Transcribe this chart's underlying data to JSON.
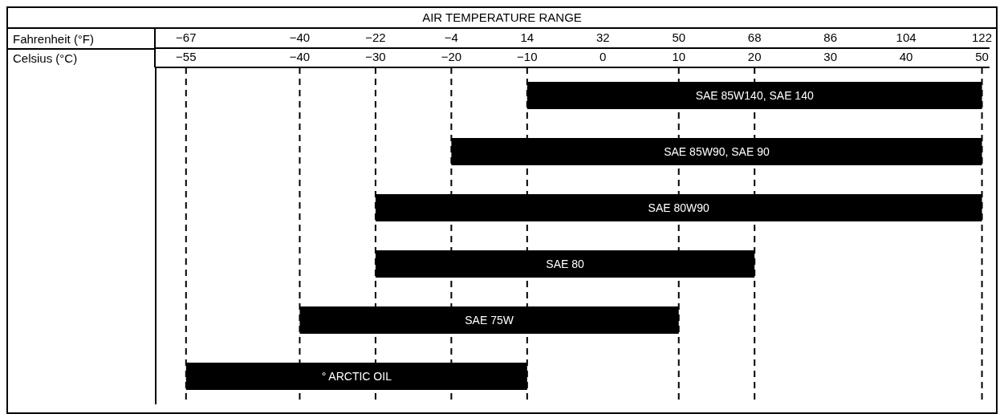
{
  "chart_data": {
    "type": "bar",
    "orientation": "horizontal",
    "title": "AIR TEMPERATURE RANGE",
    "annotations": [
      "Celsius (°C)"
    ],
    "x2label": "Fahrenheit (°F)",
    "categories": [
      "SAE 85W140, SAE 140",
      "SAE 85W90, SAE 90",
      "SAE 80W90",
      "SAE 80",
      "SAE 75W",
      "° ARCTIC OIL"
    ],
    "values": [
      60,
      70,
      80,
      50,
      50,
      45
    ],
    "base": [
      -10,
      -20,
      -30,
      -30,
      -40,
      -55
    ],
    "color": "#000000",
    "xlim": [
      -59,
      51
    ],
    "xticks": [
      -55,
      -40,
      -30,
      -20,
      -10,
      0,
      10,
      20,
      30,
      40,
      50
    ],
    "x2lim": [
      -74.2,
      123.8
    ],
    "x2ticks": [
      -67,
      -40,
      -22,
      -4,
      14,
      32,
      50,
      68,
      86,
      104,
      122
    ],
    "ref_lines": [
      {
        "axis": "x",
        "value": -55,
        "line_style": "dashed"
      },
      {
        "axis": "x",
        "value": -40,
        "line_style": "dashed"
      },
      {
        "axis": "x",
        "value": -30,
        "line_style": "dashed"
      },
      {
        "axis": "x",
        "value": -20,
        "line_style": "dashed"
      },
      {
        "axis": "x",
        "value": -10,
        "line_style": "dashed"
      },
      {
        "axis": "x",
        "value": 10,
        "line_style": "dashed"
      },
      {
        "axis": "x",
        "value": 20,
        "line_style": "dashed"
      },
      {
        "axis": "x",
        "value": 50,
        "line_style": "dashed"
      }
    ],
    "grid": false,
    "legend": false
  }
}
